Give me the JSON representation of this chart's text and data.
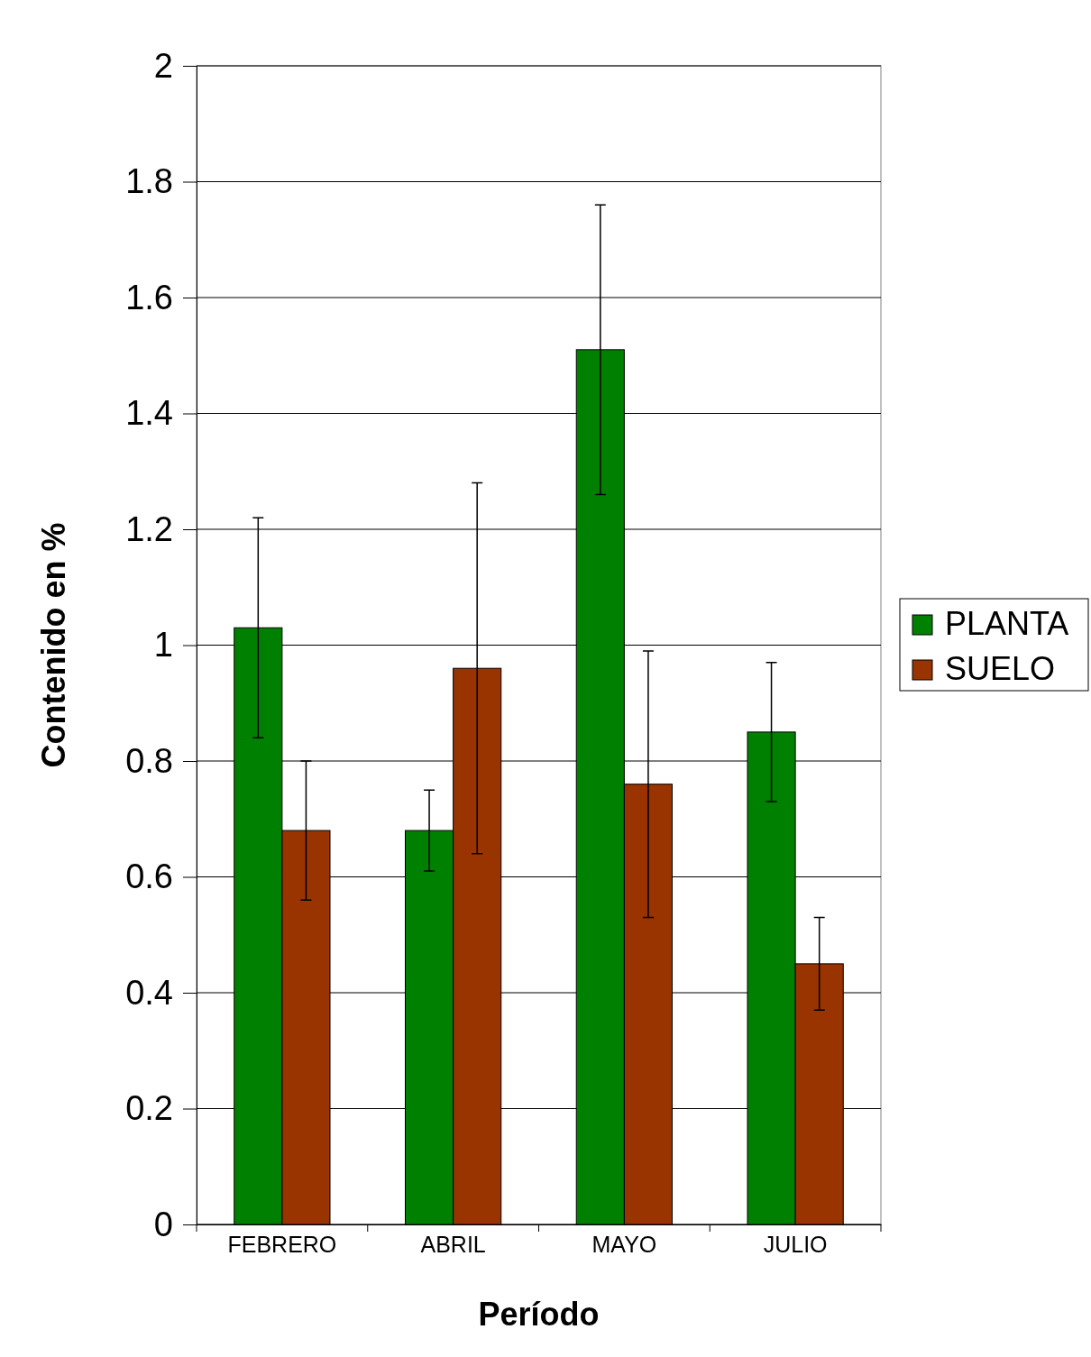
{
  "chart_data": {
    "type": "bar",
    "xlabel": "Período",
    "ylabel": "Contenido en %",
    "categories": [
      "FEBRERO",
      "ABRIL",
      "MAYO",
      "JULIO"
    ],
    "series": [
      {
        "name": "PLANTA",
        "color": "#008000",
        "values": [
          1.03,
          0.68,
          1.51,
          0.85
        ],
        "errors": [
          [
            0.84,
            1.22
          ],
          [
            0.61,
            0.75
          ],
          [
            1.26,
            1.76
          ],
          [
            0.73,
            0.97
          ]
        ]
      },
      {
        "name": "SUELO",
        "color": "#993300",
        "values": [
          0.68,
          0.96,
          0.76,
          0.45
        ],
        "errors": [
          [
            0.56,
            0.8
          ],
          [
            0.64,
            1.28
          ],
          [
            0.53,
            0.99
          ],
          [
            0.37,
            0.53
          ]
        ]
      }
    ],
    "ylim": [
      0,
      2
    ],
    "yticks": [
      0,
      0.2,
      0.4,
      0.6,
      0.8,
      1,
      1.2,
      1.4,
      1.6,
      1.8,
      2
    ],
    "grid": "y",
    "legend": "right"
  }
}
